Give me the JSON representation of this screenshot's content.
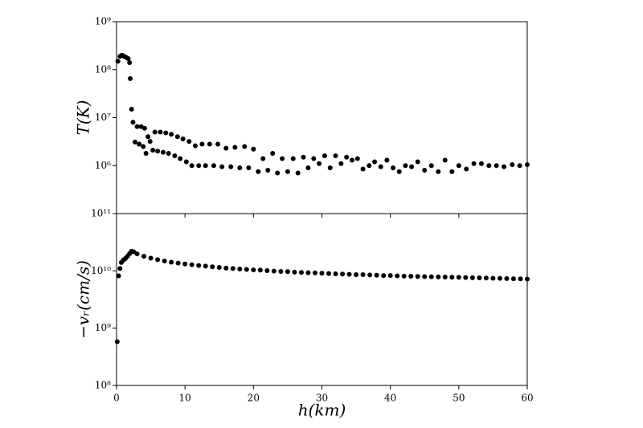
{
  "chart_data": [
    {
      "type": "scatter",
      "ylabel": "T(K)",
      "color": "#000000",
      "log_y": true,
      "xlim": [
        0,
        60
      ],
      "xticks": [
        0,
        10,
        20,
        30,
        40,
        50,
        60
      ],
      "ylim": [
        100000.0,
        1000000000.0
      ],
      "yticks": [
        {
          "value": 1000000.0,
          "label": "10⁶"
        },
        {
          "value": 10000000.0,
          "label": "10⁷"
        },
        {
          "value": 100000000.0,
          "label": "10⁸"
        },
        {
          "value": 1000000000.0,
          "label": "10⁹"
        }
      ],
      "x": [
        0.2,
        0.5,
        0.8,
        1.1,
        1.4,
        1.7,
        1.9,
        2.0,
        2.2,
        2.4,
        2.7,
        3.0,
        3.3,
        3.6,
        3.9,
        4.1,
        4.3,
        4.6,
        4.9,
        5.3,
        5.6,
        6.0,
        6.4,
        6.8,
        7.2,
        7.6,
        8.0,
        8.5,
        8.9,
        9.3,
        9.7,
        10.2,
        10.6,
        11.0,
        11.5,
        12.0,
        12.5,
        13.0,
        13.6,
        14.2,
        14.8,
        15.4,
        16.0,
        16.7,
        17.3,
        18.0,
        18.7,
        19.3,
        20.0,
        20.7,
        21.4,
        22.1,
        22.8,
        23.5,
        24.2,
        25.0,
        25.8,
        26.5,
        27.3,
        28.0,
        28.8,
        29.6,
        30.4,
        31.2,
        32.0,
        32.8,
        33.6,
        34.4,
        35.2,
        36.0,
        36.9,
        37.7,
        38.6,
        39.5,
        40.4,
        41.3,
        42.2,
        43.1,
        44.0,
        45.0,
        46.0,
        47.0,
        48.0,
        49.0,
        50.0,
        51.1,
        52.2,
        53.3,
        54.4,
        55.5,
        56.6,
        57.8,
        58.9,
        60.0
      ],
      "values": [
        150000000.0,
        190000000.0,
        200000000.0,
        190000000.0,
        180000000.0,
        170000000.0,
        140000000.0,
        65000000.0,
        15000000.0,
        8000000.0,
        3100000.0,
        6500000.0,
        2800000.0,
        6500000.0,
        2500000.0,
        6000000.0,
        1800000.0,
        4000000.0,
        3200000.0,
        2100000.0,
        5000000.0,
        2000000.0,
        5000000.0,
        1900000.0,
        4800000.0,
        1800000.0,
        4500000.0,
        1600000.0,
        4000000.0,
        1400000.0,
        3600000.0,
        1200000.0,
        3200000.0,
        1000000.0,
        2600000.0,
        1000000.0,
        2800000.0,
        1000000.0,
        2800000.0,
        1000000.0,
        2800000.0,
        950000.0,
        2300000.0,
        950000.0,
        2400000.0,
        900000.0,
        2500000.0,
        900000.0,
        2200000.0,
        750000.0,
        1400000.0,
        800000.0,
        1800000.0,
        700000.0,
        1400000.0,
        750000.0,
        1400000.0,
        700000.0,
        1500000.0,
        900000.0,
        1400000.0,
        1100000.0,
        1600000.0,
        900000.0,
        1600000.0,
        1100000.0,
        1500000.0,
        1300000.0,
        1400000.0,
        850000.0,
        1000000.0,
        1200000.0,
        950000.0,
        1300000.0,
        900000.0,
        750000.0,
        1000000.0,
        950000.0,
        1200000.0,
        800000.0,
        1000000.0,
        750000.0,
        1300000.0,
        750000.0,
        1000000.0,
        850000.0,
        1100000.0,
        1100000.0,
        1000000.0,
        1000000.0,
        950000.0,
        1050000.0,
        1000000.0,
        1050000.0
      ]
    },
    {
      "type": "scatter",
      "ylabel": "−vᵣ(cm/s)",
      "xlabel": "h(km)",
      "color": "#000000",
      "log_y": true,
      "xlim": [
        0,
        60
      ],
      "xticks": [
        0,
        10,
        20,
        30,
        40,
        50,
        60
      ],
      "ylim": [
        100000000.0,
        100000000000.0
      ],
      "yticks": [
        {
          "value": 100000000.0,
          "label": "10⁸"
        },
        {
          "value": 1000000000.0,
          "label": "10⁹"
        },
        {
          "value": 10000000000.0,
          "label": "10¹⁰"
        },
        {
          "value": 100000000000.0,
          "label": "10¹¹"
        }
      ],
      "x": [
        0.1,
        0.3,
        0.5,
        0.7,
        1.0,
        1.3,
        1.6,
        1.9,
        2.2,
        2.5,
        3,
        4,
        5,
        6,
        7,
        8,
        9,
        10,
        11,
        12,
        13,
        14,
        15,
        16,
        17,
        18,
        19,
        20,
        21,
        22,
        23,
        24,
        25,
        26,
        27,
        28,
        29,
        30,
        31,
        32,
        33,
        34,
        35,
        36,
        37,
        38,
        39,
        40,
        41,
        42,
        43,
        44,
        45,
        46,
        47,
        48,
        49,
        50,
        51,
        52,
        53,
        54,
        55,
        56,
        57,
        58,
        59,
        60
      ],
      "values": [
        580000000.0,
        8200000000.0,
        11000000000.0,
        14000000000.0,
        15500000000.0,
        16500000000.0,
        18000000000.0,
        20000000000.0,
        22000000000.0,
        21500000000.0,
        19800000000.0,
        18000000000.0,
        16700000000.0,
        15700000000.0,
        14900000000.0,
        14200000000.0,
        13700000000.0,
        13200000000.0,
        12800000000.0,
        12400000000.0,
        12100000000.0,
        11800000000.0,
        11500000000.0,
        11200000000.0,
        11000000000.0,
        10800000000.0,
        10600000000.0,
        10400000000.0,
        10300000000.0,
        10100000000.0,
        9900000000.0,
        9800000000.0,
        9700000000.0,
        9500000000.0,
        9400000000.0,
        9300000000.0,
        9200000000.0,
        9100000000.0,
        9000000000.0,
        8900000000.0,
        8800000000.0,
        8700000000.0,
        8600000000.0,
        8600000000.0,
        8500000000.0,
        8400000000.0,
        8300000000.0,
        8300000000.0,
        8200000000.0,
        8100000000.0,
        8050000000.0,
        8000000000.0,
        7950000000.0,
        7900000000.0,
        7850000000.0,
        7800000000.0,
        7750000000.0,
        7700000000.0,
        7650000000.0,
        7600000000.0,
        7550000000.0,
        7500000000.0,
        7450000000.0,
        7400000000.0,
        7350000000.0,
        7300000000.0,
        7250000000.0,
        7200000000.0
      ]
    }
  ]
}
